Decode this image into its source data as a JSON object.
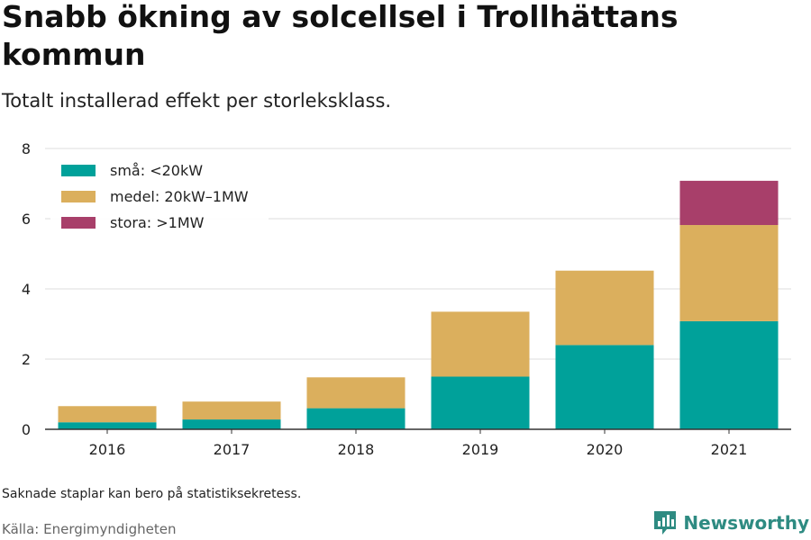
{
  "title": "Snabb ökning av solcellsel i Trollhättans kommun",
  "subtitle": "Totalt installerad effekt per storleksklass.",
  "note": "Saknade staplar kan bero på statistiksekretess.",
  "source": "Källa: Energimyndigheten",
  "brand": "Newsworthy",
  "chart_data": {
    "type": "bar",
    "stacked": true,
    "categories": [
      "2016",
      "2017",
      "2018",
      "2019",
      "2020",
      "2021"
    ],
    "series": [
      {
        "name": "små: <20kW",
        "color": "#00a19a",
        "values": [
          0.2,
          0.28,
          0.6,
          1.5,
          2.4,
          3.08
        ]
      },
      {
        "name": "medel: 20kW–1MW",
        "color": "#dbaf5d",
        "values": [
          0.46,
          0.51,
          0.88,
          1.85,
          2.12,
          2.74
        ]
      },
      {
        "name": "stora: >1MW",
        "color": "#a83f6a",
        "values": [
          0,
          0,
          0,
          0,
          0,
          1.26
        ]
      }
    ],
    "ylim": [
      0,
      8
    ],
    "yticks": [
      0,
      2,
      4,
      6,
      8
    ],
    "grid": true,
    "legend_position": "top-left"
  }
}
